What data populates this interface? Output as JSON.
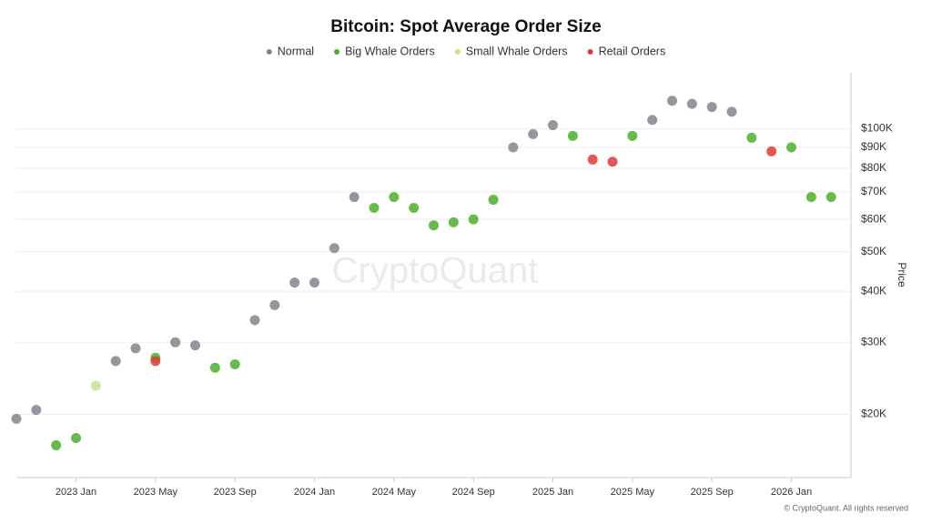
{
  "chart_data": {
    "type": "scatter",
    "title": "Bitcoin: Spot Average Order Size",
    "y_label": "Price",
    "watermark": "CryptoQuant",
    "credit": "© CryptoQuant. All rights reserved",
    "log_y": true,
    "grid": true,
    "xlim": [
      "2022-10",
      "2026-04"
    ],
    "xticks": [
      {
        "value": "2023-01",
        "label": "2023 Jan"
      },
      {
        "value": "2023-05",
        "label": "2023 May"
      },
      {
        "value": "2023-09",
        "label": "2023 Sep"
      },
      {
        "value": "2024-01",
        "label": "2024 Jan"
      },
      {
        "value": "2024-05",
        "label": "2024 May"
      },
      {
        "value": "2024-09",
        "label": "2024 Sep"
      },
      {
        "value": "2025-01",
        "label": "2025 Jan"
      },
      {
        "value": "2025-05",
        "label": "2025 May"
      },
      {
        "value": "2025-09",
        "label": "2025 Sep"
      },
      {
        "value": "2026-01",
        "label": "2026 Jan"
      }
    ],
    "ylim": [
      14000,
      137000
    ],
    "yticks": [
      {
        "value": 20000,
        "label": "$20K"
      },
      {
        "value": 30000,
        "label": "$30K"
      },
      {
        "value": 40000,
        "label": "$40K"
      },
      {
        "value": 50000,
        "label": "$50K"
      },
      {
        "value": 60000,
        "label": "$60K"
      },
      {
        "value": 70000,
        "label": "$70K"
      },
      {
        "value": 80000,
        "label": "$80K"
      },
      {
        "value": 90000,
        "label": "$90K"
      },
      {
        "value": 100000,
        "label": "$100K"
      }
    ],
    "series": [
      {
        "name": "Normal",
        "color": "#85828f",
        "x": [
          "2022-10",
          "2022-11",
          "2023-03",
          "2023-04",
          "2023-06",
          "2023-07",
          "2023-10",
          "2023-11",
          "2023-12",
          "2024-01",
          "2024-02",
          "2024-03",
          "2024-11",
          "2024-12",
          "2025-01",
          "2025-06",
          "2025-07",
          "2025-08",
          "2025-09",
          "2025-10"
        ],
        "values": [
          19500,
          20500,
          27000,
          29000,
          30000,
          29500,
          34000,
          37000,
          42000,
          42000,
          51000,
          68000,
          90000,
          97000,
          102000,
          105000,
          117000,
          115000,
          113000,
          110000
        ]
      },
      {
        "name": "Big Whale Orders",
        "color": "#4caf2a",
        "x": [
          "2022-12",
          "2023-01",
          "2023-05",
          "2023-08",
          "2023-09",
          "2024-04",
          "2024-05",
          "2024-06",
          "2024-07",
          "2024-08",
          "2024-09",
          "2024-10",
          "2025-02",
          "2025-05",
          "2025-11",
          "2026-01",
          "2026-02",
          "2026-03"
        ],
        "values": [
          16800,
          17500,
          27500,
          26000,
          26500,
          64000,
          68000,
          64000,
          58000,
          59000,
          60000,
          67000,
          96000,
          96000,
          95000,
          90000,
          68000,
          68000
        ]
      },
      {
        "name": "Small Whale Orders",
        "color": "#c9e08f",
        "x": [
          "2023-02"
        ],
        "values": [
          23500
        ]
      },
      {
        "name": "Retail Orders",
        "color": "#e03a3a",
        "x": [
          "2023-05",
          "2025-03",
          "2025-04",
          "2025-12"
        ],
        "values": [
          27000,
          84000,
          83000,
          88000
        ]
      }
    ]
  }
}
